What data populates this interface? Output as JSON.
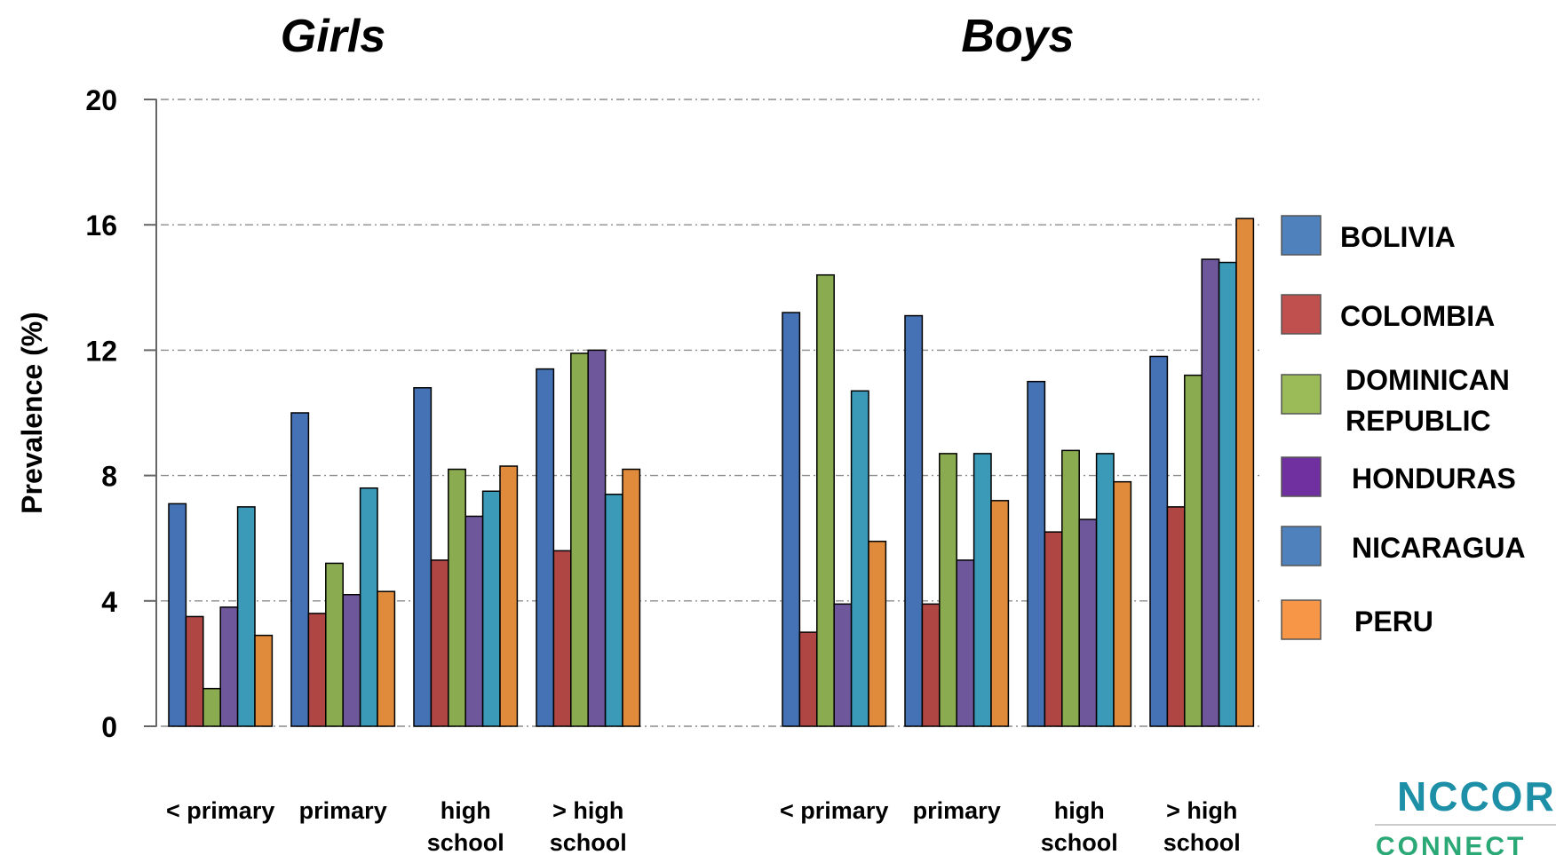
{
  "colors": {
    "BOLIVIA": "#4472b4",
    "COLOMBIA": "#b04643",
    "DOMINICAN REPUBLIC": "#8aab4f",
    "HONDURAS": "#6e579a",
    "NICARAGUA": "#3b9ab8",
    "PERU": "#e08a3c"
  },
  "legend_colors": {
    "BOLIVIA": "#4f81bd",
    "COLOMBIA": "#c0504d",
    "DOMINICAN REPUBLIC": "#9bbb59",
    "HONDURAS": "#7030a0",
    "NICARAGUA": "#4f81bd",
    "PERU": "#f79646"
  },
  "logo": {
    "line1": "NCCOR",
    "line2": "CONNECT"
  },
  "chart_data": [
    {
      "type": "bar",
      "title": "Girls",
      "ylabel": "Prevalence (%)",
      "ylim": [
        0,
        20
      ],
      "yticks": [
        0,
        4,
        8,
        12,
        16,
        20
      ],
      "grid": true,
      "legend": "right",
      "categories": [
        "< primary",
        "primary",
        "high school",
        "> high school"
      ],
      "category_lines": [
        [
          "< primary"
        ],
        [
          "primary"
        ],
        [
          "high",
          "school"
        ],
        [
          "> high",
          "school"
        ]
      ],
      "series": [
        {
          "name": "BOLIVIA",
          "legend_lines": [
            "BOLIVIA"
          ],
          "values": [
            7.1,
            10.0,
            10.8,
            11.4
          ]
        },
        {
          "name": "COLOMBIA",
          "legend_lines": [
            "COLOMBIA"
          ],
          "values": [
            3.5,
            3.6,
            5.3,
            5.6
          ]
        },
        {
          "name": "DOMINICAN REPUBLIC",
          "legend_lines": [
            "DOMINICAN",
            "REPUBLIC"
          ],
          "values": [
            1.2,
            5.2,
            8.2,
            11.9
          ]
        },
        {
          "name": "HONDURAS",
          "legend_lines": [
            "HONDURAS"
          ],
          "values": [
            3.8,
            4.2,
            6.7,
            12.0
          ]
        },
        {
          "name": "NICARAGUA",
          "legend_lines": [
            "NICARAGUA"
          ],
          "values": [
            7.0,
            7.6,
            7.5,
            7.4
          ]
        },
        {
          "name": "PERU",
          "legend_lines": [
            "PERU"
          ],
          "values": [
            2.9,
            4.3,
            8.3,
            8.2
          ]
        }
      ]
    },
    {
      "type": "bar",
      "title": "Boys",
      "ylabel": "Prevalence (%)",
      "ylim": [
        0,
        20
      ],
      "grid": true,
      "categories": [
        "< primary",
        "primary",
        "high school",
        "> high school"
      ],
      "category_lines": [
        [
          "< primary"
        ],
        [
          "primary"
        ],
        [
          "high",
          "school"
        ],
        [
          "> high",
          "school"
        ]
      ],
      "series": [
        {
          "name": "BOLIVIA",
          "values": [
            13.2,
            13.1,
            11.0,
            11.8
          ]
        },
        {
          "name": "COLOMBIA",
          "values": [
            3.0,
            3.9,
            6.2,
            7.0
          ]
        },
        {
          "name": "DOMINICAN REPUBLIC",
          "values": [
            14.4,
            8.7,
            8.8,
            11.2
          ]
        },
        {
          "name": "HONDURAS",
          "values": [
            3.9,
            5.3,
            6.6,
            14.9
          ]
        },
        {
          "name": "NICARAGUA",
          "values": [
            10.7,
            8.7,
            8.7,
            14.8
          ]
        },
        {
          "name": "PERU",
          "values": [
            5.9,
            7.2,
            7.8,
            16.2
          ]
        }
      ]
    }
  ]
}
